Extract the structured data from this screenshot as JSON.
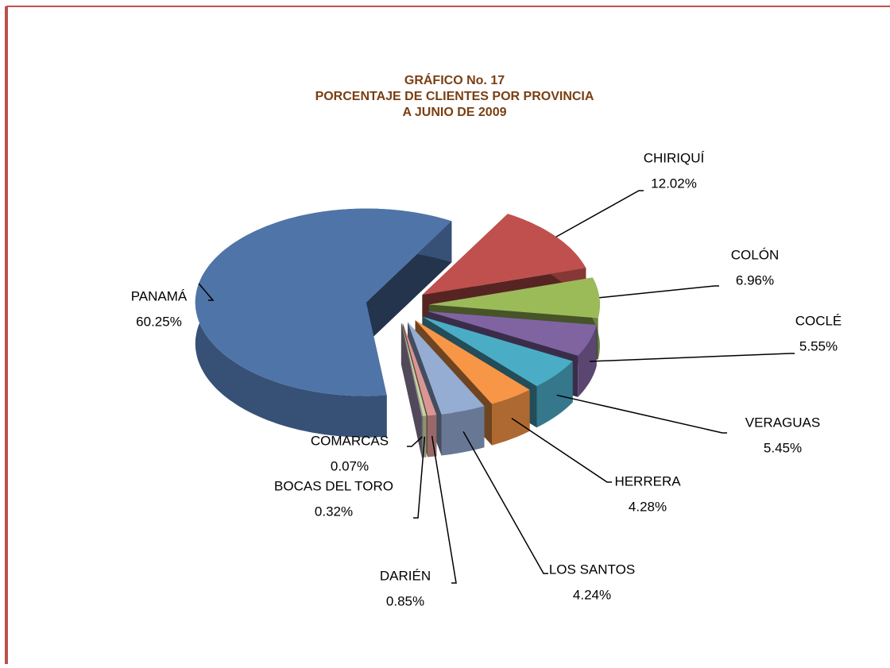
{
  "chart_data": {
    "type": "pie3d",
    "title": [
      "GRÁFICO  No.  17",
      "PORCENTAJE  DE CLIENTES  POR PROVINCIA",
      "A JUNIO DE 2009"
    ],
    "categories": [
      "CHIRIQUÍ",
      "COLÓN",
      "COCLÉ",
      "VERAGUAS",
      "HERRERA",
      "LOS SANTOS",
      "DARIÉN",
      "BOCAS DEL TORO",
      "COMARCAS",
      "PANAMÁ"
    ],
    "values": [
      12.02,
      6.96,
      5.55,
      5.45,
      4.28,
      4.24,
      0.85,
      0.32,
      0.07,
      60.25
    ],
    "value_labels": [
      "12.02%",
      "6.96%",
      "5.55%",
      "5.45%",
      "4.28%",
      "4.24%",
      "0.85%",
      "0.32%",
      "0.07%",
      "60.25%"
    ],
    "colors": [
      "#c0504d",
      "#9bbb59",
      "#8064a2",
      "#4bacc6",
      "#f79646",
      "#95acd3",
      "#d99694",
      "#c3d69b",
      "#b3a2c7",
      "#4f74a8"
    ]
  }
}
